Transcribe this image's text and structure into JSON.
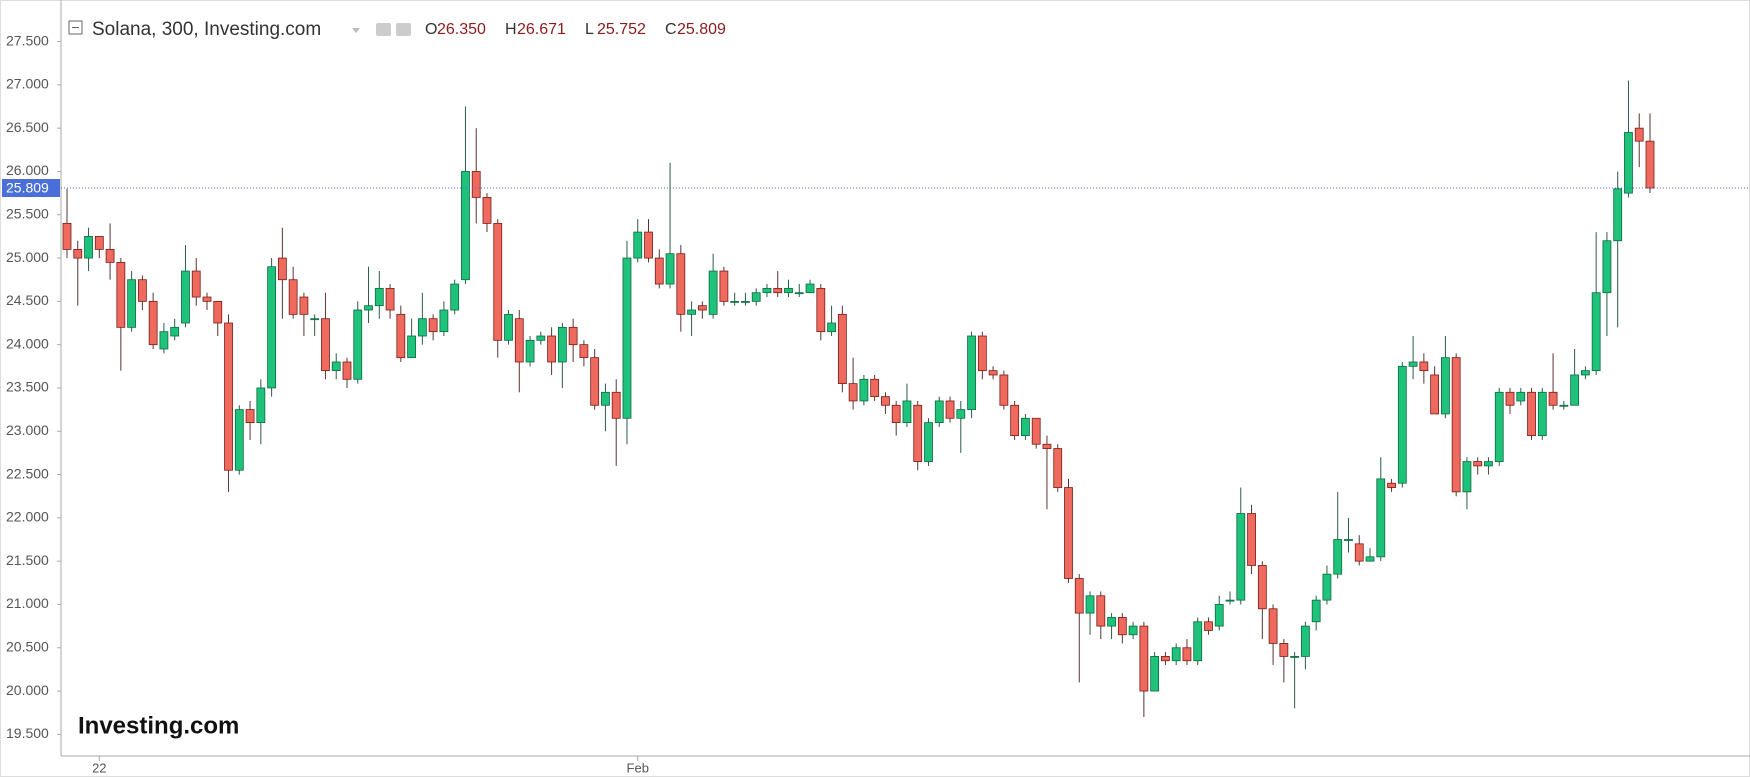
{
  "chart_data": {
    "type": "candlestick",
    "title": "Solana, 300, Investing.com",
    "header": [
      {
        "key": "O",
        "value": 26.35,
        "label": "26.350"
      },
      {
        "key": "H",
        "value": 26.671,
        "label": "26.671"
      },
      {
        "key": "L",
        "value": 25.752,
        "label": "25.752"
      },
      {
        "key": "C",
        "value": 25.809,
        "label": "25.809"
      }
    ],
    "last_price": {
      "value": 25.809,
      "label": "25.809"
    },
    "logo": "Investing.com",
    "up_color": "#1fc27b",
    "down_color": "#ee6a5e",
    "categories": [
      null,
      null,
      null,
      "22",
      null,
      null,
      null,
      null,
      null,
      null,
      null,
      null,
      null,
      null,
      null,
      null,
      null,
      null,
      null,
      null,
      null,
      null,
      null,
      null,
      null,
      null,
      null,
      null,
      null,
      null,
      null,
      null,
      null,
      null,
      null,
      null,
      null,
      null,
      null,
      null,
      null,
      null,
      null,
      null,
      null,
      null,
      null,
      null,
      null,
      null,
      null,
      null,
      null,
      "Feb",
      null,
      null,
      null,
      null,
      null,
      null,
      null,
      null,
      null,
      null,
      null,
      null,
      null,
      null,
      null,
      null,
      null,
      null,
      null,
      null,
      null,
      null,
      null,
      null,
      null,
      null,
      null,
      null,
      null,
      null,
      null,
      null,
      null,
      null,
      null,
      null,
      null,
      null,
      null,
      null,
      null,
      null,
      null,
      null,
      null,
      null,
      null,
      null,
      null,
      null,
      null,
      null,
      null,
      null,
      null,
      null,
      null,
      null,
      null,
      null,
      null,
      null,
      null,
      null,
      null,
      null,
      null,
      null,
      null,
      null,
      null,
      null,
      null,
      null,
      null,
      null,
      null,
      null,
      null,
      null,
      null,
      null,
      null,
      null,
      null,
      null,
      null,
      null,
      null,
      null,
      null,
      null,
      null,
      null
    ],
    "open": [
      25.4,
      25.1,
      25.0,
      25.25,
      25.1,
      24.95,
      24.2,
      24.75,
      24.5,
      23.95,
      24.1,
      24.25,
      24.85,
      24.55,
      24.5,
      24.25,
      22.55,
      23.25,
      23.1,
      23.5,
      25.0,
      24.75,
      24.55,
      24.3,
      24.3,
      23.7,
      23.8,
      23.6,
      24.4,
      24.45,
      24.65,
      24.35,
      23.85,
      24.1,
      24.3,
      24.15,
      24.4,
      24.75,
      26.0,
      25.7,
      25.4,
      24.05,
      24.3,
      23.8,
      24.05,
      24.1,
      23.8,
      24.2,
      24.0,
      23.85,
      23.3,
      23.45,
      23.15,
      25.0,
      25.3,
      25.0,
      24.7,
      25.05,
      24.35,
      24.45,
      24.35,
      24.85,
      24.5,
      24.5,
      24.5,
      24.6,
      24.65,
      24.6,
      24.6,
      24.6,
      24.65,
      24.15,
      24.35,
      23.55,
      23.35,
      23.6,
      23.4,
      23.3,
      23.1,
      23.3,
      22.65,
      23.1,
      23.35,
      23.15,
      23.25,
      24.1,
      23.7,
      23.65,
      23.3,
      22.95,
      23.15,
      22.85,
      22.8,
      22.35,
      21.3,
      20.9,
      21.1,
      20.75,
      20.85,
      20.65,
      20.75,
      20.0,
      20.4,
      20.35,
      20.5,
      20.35,
      20.8,
      20.75,
      21.05,
      21.05,
      22.05,
      21.45,
      20.95,
      20.55,
      20.4,
      20.4,
      20.8,
      21.05,
      21.35,
      21.75,
      21.7,
      21.5,
      21.55,
      22.4,
      22.4,
      23.75,
      23.8,
      23.65,
      23.2,
      23.85,
      22.3,
      22.65,
      22.6,
      22.65,
      23.45,
      23.35,
      23.45,
      22.95,
      23.45,
      23.3,
      23.3,
      23.65,
      23.7,
      24.6,
      25.2,
      25.75,
      26.5,
      26.35
    ],
    "high": [
      25.8,
      25.2,
      25.35,
      25.25,
      25.4,
      25.0,
      24.85,
      24.8,
      24.6,
      24.25,
      24.3,
      25.15,
      25.0,
      24.6,
      24.5,
      24.35,
      23.3,
      23.35,
      23.6,
      25.0,
      25.35,
      24.9,
      24.6,
      24.35,
      24.6,
      23.9,
      23.85,
      24.5,
      24.9,
      24.85,
      24.7,
      24.45,
      24.3,
      24.6,
      24.35,
      24.5,
      24.75,
      26.75,
      26.5,
      25.75,
      25.45,
      24.4,
      24.4,
      24.1,
      24.15,
      24.2,
      24.25,
      24.3,
      24.05,
      23.95,
      23.55,
      23.6,
      25.2,
      25.45,
      25.45,
      25.1,
      26.1,
      25.15,
      24.5,
      24.5,
      25.05,
      24.9,
      24.6,
      24.6,
      24.65,
      24.7,
      24.85,
      24.75,
      24.7,
      24.75,
      24.7,
      24.45,
      24.45,
      23.85,
      23.65,
      23.65,
      23.45,
      23.35,
      23.55,
      23.35,
      23.15,
      23.4,
      23.4,
      23.35,
      24.15,
      24.15,
      23.75,
      23.7,
      23.35,
      23.2,
      23.15,
      22.95,
      22.85,
      22.45,
      21.35,
      21.15,
      21.15,
      20.9,
      20.9,
      20.8,
      20.8,
      20.45,
      20.45,
      20.55,
      20.6,
      20.85,
      20.85,
      21.1,
      21.15,
      22.35,
      22.15,
      21.5,
      21.0,
      20.6,
      20.45,
      20.8,
      21.1,
      21.45,
      22.3,
      22.0,
      21.8,
      21.65,
      22.7,
      22.45,
      23.8,
      24.1,
      23.9,
      23.75,
      24.1,
      23.9,
      22.7,
      22.7,
      22.7,
      23.5,
      23.5,
      23.5,
      23.5,
      23.5,
      23.9,
      23.35,
      23.95,
      23.75,
      25.3,
      25.3,
      26.0,
      27.05,
      26.67,
      26.671
    ],
    "low": [
      25.0,
      24.45,
      24.85,
      25.0,
      24.75,
      23.7,
      24.15,
      24.4,
      23.95,
      23.9,
      24.05,
      24.2,
      24.45,
      24.4,
      24.1,
      22.3,
      22.5,
      22.9,
      22.85,
      23.4,
      24.3,
      24.3,
      24.1,
      24.1,
      23.6,
      23.6,
      23.5,
      23.55,
      24.25,
      24.3,
      24.3,
      23.8,
      23.85,
      24.0,
      24.05,
      24.1,
      24.35,
      24.7,
      25.4,
      25.3,
      23.85,
      24.0,
      23.45,
      23.75,
      24.0,
      23.65,
      23.5,
      23.8,
      23.75,
      23.25,
      23.0,
      22.6,
      22.85,
      24.95,
      24.95,
      24.65,
      24.65,
      24.15,
      24.1,
      24.3,
      24.3,
      24.45,
      24.45,
      24.45,
      24.45,
      24.55,
      24.55,
      24.55,
      24.55,
      24.6,
      24.05,
      24.1,
      23.45,
      23.25,
      23.3,
      23.35,
      23.2,
      22.95,
      23.05,
      22.55,
      22.6,
      23.05,
      23.1,
      22.75,
      23.15,
      23.6,
      23.6,
      23.25,
      22.9,
      22.9,
      22.8,
      22.1,
      22.3,
      21.25,
      20.1,
      20.65,
      20.6,
      20.6,
      20.55,
      20.6,
      19.7,
      20.0,
      20.3,
      20.3,
      20.3,
      20.3,
      20.65,
      20.7,
      21.0,
      21.0,
      21.35,
      20.6,
      20.3,
      20.1,
      19.8,
      20.25,
      20.7,
      21.0,
      21.3,
      21.6,
      21.45,
      21.5,
      21.5,
      22.3,
      22.35,
      23.6,
      23.55,
      23.2,
      23.15,
      22.25,
      22.1,
      22.5,
      22.5,
      22.6,
      23.2,
      23.3,
      22.9,
      22.9,
      23.25,
      23.25,
      23.3,
      23.6,
      23.65,
      24.1,
      24.2,
      25.7,
      26.05,
      25.752
    ],
    "close": [
      25.1,
      25.0,
      25.25,
      25.1,
      24.95,
      24.2,
      24.75,
      24.5,
      24.0,
      24.15,
      24.2,
      24.85,
      24.55,
      24.5,
      24.25,
      22.55,
      23.25,
      23.1,
      23.5,
      24.9,
      24.75,
      24.35,
      24.35,
      24.3,
      23.7,
      23.8,
      23.6,
      24.4,
      24.45,
      24.65,
      24.4,
      23.85,
      24.1,
      24.3,
      24.15,
      24.4,
      24.7,
      26.0,
      25.7,
      25.4,
      24.05,
      24.35,
      23.8,
      24.05,
      24.1,
      23.8,
      24.2,
      24.0,
      23.85,
      23.3,
      23.45,
      23.15,
      25.0,
      25.3,
      25.0,
      24.7,
      25.05,
      24.35,
      24.4,
      24.4,
      24.85,
      24.5,
      24.5,
      24.5,
      24.6,
      24.65,
      24.6,
      24.65,
      24.6,
      24.7,
      24.15,
      24.25,
      23.55,
      23.35,
      23.6,
      23.4,
      23.3,
      23.1,
      23.35,
      22.65,
      23.1,
      23.35,
      23.15,
      23.25,
      24.1,
      23.7,
      23.65,
      23.3,
      22.95,
      23.15,
      22.85,
      22.8,
      22.35,
      21.3,
      20.9,
      21.1,
      20.75,
      20.85,
      20.65,
      20.75,
      20.0,
      20.4,
      20.35,
      20.5,
      20.35,
      20.8,
      20.7,
      21.0,
      21.05,
      22.05,
      21.45,
      20.95,
      20.55,
      20.4,
      20.4,
      20.75,
      21.05,
      21.35,
      21.75,
      21.75,
      21.5,
      21.55,
      22.45,
      22.35,
      23.75,
      23.8,
      23.7,
      23.2,
      23.85,
      22.3,
      22.65,
      22.6,
      22.65,
      23.45,
      23.3,
      23.45,
      22.95,
      23.45,
      23.3,
      23.3,
      23.65,
      23.7,
      24.6,
      25.2,
      25.8,
      26.45,
      26.35,
      25.809
    ],
    "ylim": [
      19.25,
      27.98
    ],
    "yticks": [
      {
        "value": 19.5,
        "label": "19.500"
      },
      {
        "value": 20,
        "label": "20.000"
      },
      {
        "value": 20.5,
        "label": "20.500"
      },
      {
        "value": 21,
        "label": "21.000"
      },
      {
        "value": 21.5,
        "label": "21.500"
      },
      {
        "value": 22,
        "label": "22.000"
      },
      {
        "value": 22.5,
        "label": "22.500"
      },
      {
        "value": 23,
        "label": "23.000"
      },
      {
        "value": 23.5,
        "label": "23.500"
      },
      {
        "value": 24,
        "label": "24.000"
      },
      {
        "value": 24.5,
        "label": "24.500"
      },
      {
        "value": 25,
        "label": "25.000"
      },
      {
        "value": 25.5,
        "label": "25.500"
      },
      {
        "value": 26,
        "label": "26.000"
      },
      {
        "value": 26.5,
        "label": "26.500"
      },
      {
        "value": 27,
        "label": "27.000"
      },
      {
        "value": 27.5,
        "label": "27.500"
      }
    ],
    "grid": false
  }
}
